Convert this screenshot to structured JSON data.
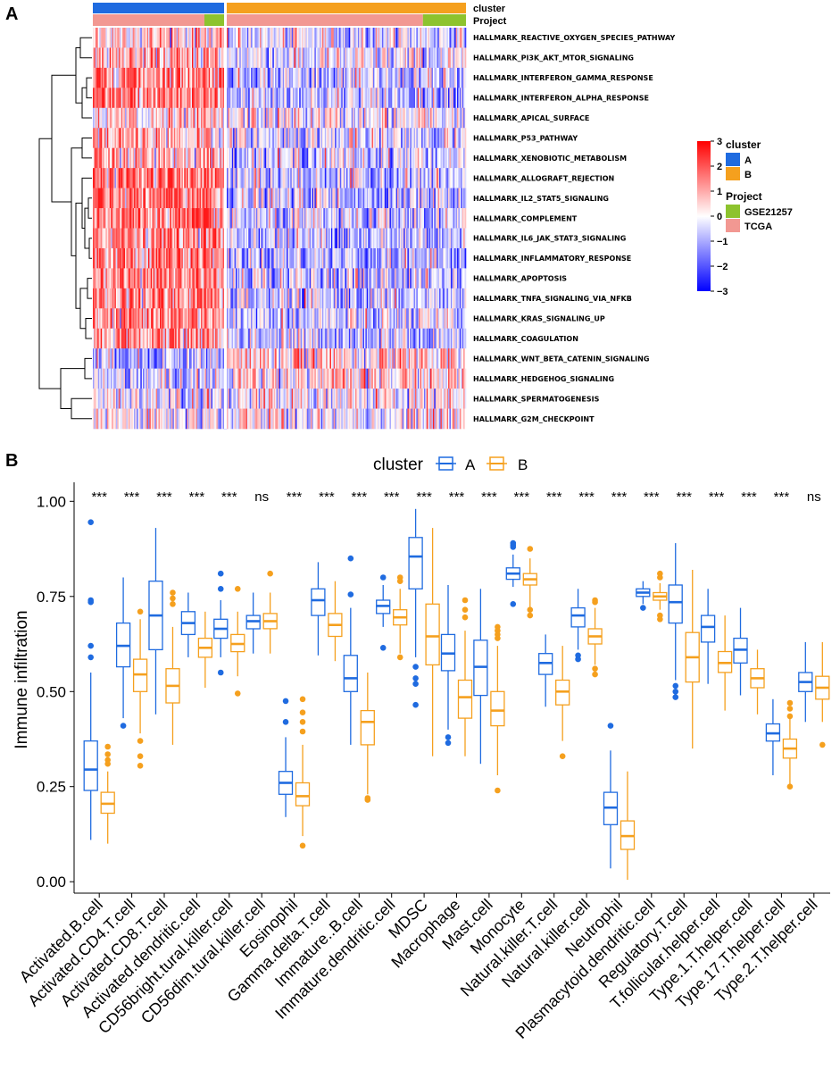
{
  "colors": {
    "cluster_A": "#1f6be0",
    "cluster_B": "#f5a01e",
    "project_GSE21257": "#8dc32e",
    "project_TCGA": "#f29892",
    "heat_low": "#1a1aff",
    "heat_mid": "#ffffff",
    "heat_high": "#ff1a1a"
  },
  "chart_data": [
    {
      "panel": "A",
      "type": "heatmap",
      "annotation_labels": [
        "cluster",
        "Project"
      ],
      "rows": [
        "HALLMARK_REACTIVE_OXYGEN_SPECIES_PATHWAY",
        "HALLMARK_PI3K_AKT_MTOR_SIGNALING",
        "HALLMARK_INTERFERON_GAMMA_RESPONSE",
        "HALLMARK_INTERFERON_ALPHA_RESPONSE",
        "HALLMARK_APICAL_SURFACE",
        "HALLMARK_P53_PATHWAY",
        "HALLMARK_XENOBIOTIC_METABOLISM",
        "HALLMARK_ALLOGRAFT_REJECTION",
        "HALLMARK_IL2_STAT5_SIGNALING",
        "HALLMARK_COMPLEMENT",
        "HALLMARK_IL6_JAK_STAT3_SIGNALING",
        "HALLMARK_INFLAMMATORY_RESPONSE",
        "HALLMARK_APOPTOSIS",
        "HALLMARK_TNFA_SIGNALING_VIA_NFKB",
        "HALLMARK_KRAS_SIGNALING_UP",
        "HALLMARK_COAGULATION",
        "HALLMARK_WNT_BETA_CATENIN_SIGNALING",
        "HALLMARK_HEDGEHOG_SIGNALING",
        "HALLMARK_SPERMATOGENESIS",
        "HALLMARK_G2M_CHECKPOINT"
      ],
      "row_bias_cluster_A": [
        0.8,
        0.9,
        1.8,
        1.6,
        0.3,
        0.9,
        1.0,
        1.8,
        1.7,
        1.8,
        1.7,
        1.8,
        1.5,
        1.5,
        1.4,
        1.4,
        -0.8,
        -0.6,
        0.1,
        0.0
      ],
      "row_bias_cluster_B": [
        -0.4,
        -0.4,
        -0.8,
        -0.7,
        -0.1,
        -0.5,
        -0.5,
        -0.8,
        -0.8,
        -0.9,
        -0.8,
        -0.9,
        -0.7,
        -0.8,
        -0.7,
        -0.7,
        0.5,
        0.4,
        -0.1,
        0.0
      ],
      "columns": {
        "cluster_fraction": {
          "A": 0.35,
          "B": 0.65
        },
        "project_within_cluster_A": {
          "TCGA": 0.85,
          "GSE21257": 0.15
        },
        "project_within_cluster_B": {
          "TCGA": 0.82,
          "GSE21257": 0.18
        }
      },
      "color_scale": {
        "min": -3,
        "max": 3,
        "ticks": [
          3,
          2,
          1,
          0,
          -1,
          -2,
          -3
        ]
      },
      "legend": {
        "cluster_title": "cluster",
        "cluster_entries": [
          "A",
          "B"
        ],
        "project_title": "Project",
        "project_entries": [
          "GSE21257",
          "TCGA"
        ]
      }
    },
    {
      "panel": "B",
      "type": "box",
      "legend_title": "cluster",
      "series_names": [
        "A",
        "B"
      ],
      "ylabel": "Immune infiltration",
      "ylim": [
        -0.03,
        1.05
      ],
      "yticks": [
        "0.00",
        "0.25",
        "0.50",
        "0.75",
        "1.00"
      ],
      "categories": [
        "Activated.B.cell",
        "Activated.CD4.T.cell",
        "Activated.CD8.T.cell",
        "Activated.dendritic.cell",
        "CD56bright.tural.killer.cell",
        "CD56dim.tural.killer.cell",
        "Eosinophil",
        "Gamma.delta.T.cell",
        "Immature..B.cell",
        "Immature.dendritic.cell",
        "MDSC",
        "Macrophage",
        "Mast.cell",
        "Monocyte",
        "Natural.killer.T.cell",
        "Natural.killer.cell",
        "Neutrophil",
        "Plasmacytoid.dendritic.cell",
        "Regulatory.T.cell",
        "T.follicular.helper.cell",
        "Type.1.T.helper.cell",
        "Type.17.T.helper.cell",
        "Type.2.T.helper.cell"
      ],
      "significance": [
        "***",
        "***",
        "***",
        "***",
        "***",
        "ns",
        "***",
        "***",
        "***",
        "***",
        "***",
        "***",
        "***",
        "***",
        "***",
        "***",
        "***",
        "***",
        "***",
        "***",
        "***",
        "***",
        "ns"
      ],
      "series": [
        {
          "name": "A",
          "boxes": [
            {
              "lo": 0.11,
              "q1": 0.24,
              "med": 0.295,
              "q3": 0.37,
              "hi": 0.55,
              "out": [
                0.945,
                0.74,
                0.735,
                0.62,
                0.59
              ]
            },
            {
              "lo": 0.43,
              "q1": 0.565,
              "med": 0.62,
              "q3": 0.68,
              "hi": 0.8,
              "out": [
                0.41
              ]
            },
            {
              "lo": 0.44,
              "q1": 0.61,
              "med": 0.7,
              "q3": 0.79,
              "hi": 0.93,
              "out": []
            },
            {
              "lo": 0.59,
              "q1": 0.65,
              "med": 0.68,
              "q3": 0.71,
              "hi": 0.76,
              "out": []
            },
            {
              "lo": 0.59,
              "q1": 0.64,
              "med": 0.665,
              "q3": 0.69,
              "hi": 0.74,
              "out": [
                0.81,
                0.77,
                0.55
              ]
            },
            {
              "lo": 0.6,
              "q1": 0.665,
              "med": 0.685,
              "q3": 0.7,
              "hi": 0.76,
              "out": []
            },
            {
              "lo": 0.17,
              "q1": 0.23,
              "med": 0.26,
              "q3": 0.29,
              "hi": 0.38,
              "out": [
                0.475,
                0.42
              ]
            },
            {
              "lo": 0.595,
              "q1": 0.7,
              "med": 0.74,
              "q3": 0.77,
              "hi": 0.84,
              "out": []
            },
            {
              "lo": 0.36,
              "q1": 0.5,
              "med": 0.535,
              "q3": 0.595,
              "hi": 0.72,
              "out": [
                0.85,
                0.755
              ]
            },
            {
              "lo": 0.67,
              "q1": 0.705,
              "med": 0.725,
              "q3": 0.74,
              "hi": 0.78,
              "out": [
                0.8,
                0.615
              ]
            },
            {
              "lo": 0.59,
              "q1": 0.77,
              "med": 0.855,
              "q3": 0.905,
              "hi": 0.98,
              "out": [
                0.565,
                0.535,
                0.52,
                0.465
              ]
            },
            {
              "lo": 0.4,
              "q1": 0.555,
              "med": 0.6,
              "q3": 0.65,
              "hi": 0.78,
              "out": [
                0.38,
                0.365
              ]
            },
            {
              "lo": 0.31,
              "q1": 0.49,
              "med": 0.565,
              "q3": 0.635,
              "hi": 0.77,
              "out": []
            },
            {
              "lo": 0.775,
              "q1": 0.795,
              "med": 0.81,
              "q3": 0.825,
              "hi": 0.86,
              "out": [
                0.89,
                0.885,
                0.88,
                0.73
              ]
            },
            {
              "lo": 0.46,
              "q1": 0.545,
              "med": 0.575,
              "q3": 0.6,
              "hi": 0.65,
              "out": []
            },
            {
              "lo": 0.61,
              "q1": 0.67,
              "med": 0.7,
              "q3": 0.72,
              "hi": 0.77,
              "out": [
                0.595,
                0.585
              ]
            },
            {
              "lo": 0.035,
              "q1": 0.15,
              "med": 0.195,
              "q3": 0.235,
              "hi": 0.345,
              "out": [
                0.41
              ]
            },
            {
              "lo": 0.73,
              "q1": 0.75,
              "med": 0.76,
              "q3": 0.77,
              "hi": 0.79,
              "out": [
                0.72
              ]
            },
            {
              "lo": 0.53,
              "q1": 0.68,
              "med": 0.735,
              "q3": 0.78,
              "hi": 0.89,
              "out": [
                0.515,
                0.5,
                0.485
              ]
            },
            {
              "lo": 0.52,
              "q1": 0.63,
              "med": 0.67,
              "q3": 0.7,
              "hi": 0.77,
              "out": []
            },
            {
              "lo": 0.49,
              "q1": 0.575,
              "med": 0.61,
              "q3": 0.64,
              "hi": 0.72,
              "out": []
            },
            {
              "lo": 0.28,
              "q1": 0.37,
              "med": 0.39,
              "q3": 0.415,
              "hi": 0.48,
              "out": []
            },
            {
              "lo": 0.42,
              "q1": 0.5,
              "med": 0.525,
              "q3": 0.55,
              "hi": 0.63,
              "out": []
            }
          ]
        },
        {
          "name": "B",
          "boxes": [
            {
              "lo": 0.1,
              "q1": 0.18,
              "med": 0.205,
              "q3": 0.235,
              "hi": 0.29,
              "out": [
                0.355,
                0.335,
                0.32,
                0.31
              ]
            },
            {
              "lo": 0.39,
              "q1": 0.5,
              "med": 0.545,
              "q3": 0.585,
              "hi": 0.69,
              "out": [
                0.71,
                0.37,
                0.33,
                0.305
              ]
            },
            {
              "lo": 0.36,
              "q1": 0.47,
              "med": 0.515,
              "q3": 0.56,
              "hi": 0.67,
              "out": [
                0.76,
                0.745,
                0.73
              ]
            },
            {
              "lo": 0.51,
              "q1": 0.59,
              "med": 0.615,
              "q3": 0.64,
              "hi": 0.71,
              "out": []
            },
            {
              "lo": 0.54,
              "q1": 0.605,
              "med": 0.625,
              "q3": 0.65,
              "hi": 0.71,
              "out": [
                0.77,
                0.495
              ]
            },
            {
              "lo": 0.6,
              "q1": 0.665,
              "med": 0.685,
              "q3": 0.705,
              "hi": 0.76,
              "out": [
                0.81
              ]
            },
            {
              "lo": 0.12,
              "q1": 0.2,
              "med": 0.225,
              "q3": 0.26,
              "hi": 0.36,
              "out": [
                0.48,
                0.445,
                0.42,
                0.395,
                0.095
              ]
            },
            {
              "lo": 0.58,
              "q1": 0.645,
              "med": 0.675,
              "q3": 0.705,
              "hi": 0.79,
              "out": []
            },
            {
              "lo": 0.23,
              "q1": 0.36,
              "med": 0.42,
              "q3": 0.45,
              "hi": 0.55,
              "out": [
                0.22,
                0.215
              ]
            },
            {
              "lo": 0.6,
              "q1": 0.675,
              "med": 0.695,
              "q3": 0.715,
              "hi": 0.77,
              "out": [
                0.8,
                0.79,
                0.59
              ]
            },
            {
              "lo": 0.33,
              "q1": 0.57,
              "med": 0.645,
              "q3": 0.73,
              "hi": 0.93,
              "out": []
            },
            {
              "lo": 0.33,
              "q1": 0.43,
              "med": 0.485,
              "q3": 0.53,
              "hi": 0.66,
              "out": [
                0.74,
                0.715,
                0.695
              ]
            },
            {
              "lo": 0.28,
              "q1": 0.41,
              "med": 0.45,
              "q3": 0.5,
              "hi": 0.62,
              "out": [
                0.67,
                0.66,
                0.65,
                0.64,
                0.24
              ]
            },
            {
              "lo": 0.72,
              "q1": 0.78,
              "med": 0.795,
              "q3": 0.81,
              "hi": 0.85,
              "out": [
                0.875,
                0.715,
                0.7
              ]
            },
            {
              "lo": 0.37,
              "q1": 0.465,
              "med": 0.5,
              "q3": 0.53,
              "hi": 0.62,
              "out": [
                0.33
              ]
            },
            {
              "lo": 0.57,
              "q1": 0.625,
              "med": 0.645,
              "q3": 0.665,
              "hi": 0.72,
              "out": [
                0.74,
                0.735,
                0.56,
                0.545
              ]
            },
            {
              "lo": 0.005,
              "q1": 0.085,
              "med": 0.12,
              "q3": 0.16,
              "hi": 0.29,
              "out": []
            },
            {
              "lo": 0.715,
              "q1": 0.74,
              "med": 0.75,
              "q3": 0.76,
              "hi": 0.785,
              "out": [
                0.81,
                0.8,
                0.7,
                0.69
              ]
            },
            {
              "lo": 0.35,
              "q1": 0.525,
              "med": 0.59,
              "q3": 0.655,
              "hi": 0.82,
              "out": []
            },
            {
              "lo": 0.45,
              "q1": 0.55,
              "med": 0.575,
              "q3": 0.605,
              "hi": 0.7,
              "out": []
            },
            {
              "lo": 0.44,
              "q1": 0.51,
              "med": 0.535,
              "q3": 0.56,
              "hi": 0.61,
              "out": []
            },
            {
              "lo": 0.25,
              "q1": 0.325,
              "med": 0.35,
              "q3": 0.375,
              "hi": 0.43,
              "out": [
                0.47,
                0.455,
                0.435,
                0.25
              ]
            },
            {
              "lo": 0.42,
              "q1": 0.48,
              "med": 0.51,
              "q3": 0.54,
              "hi": 0.63,
              "out": [
                0.36
              ]
            }
          ]
        }
      ]
    }
  ]
}
